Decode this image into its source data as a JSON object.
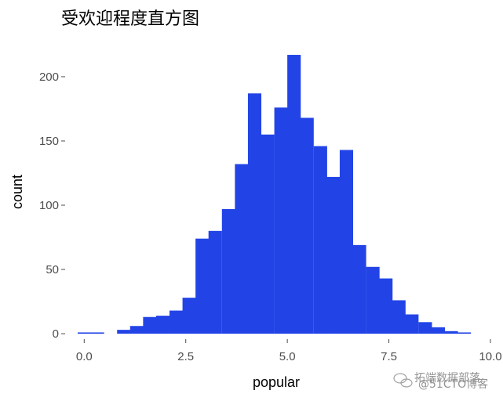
{
  "chart_data": {
    "type": "bar",
    "title": "受欢迎程度直方图",
    "xlabel": "popular",
    "ylabel": "count",
    "xlim": [
      -0.45,
      10.0
    ],
    "ylim": [
      -3,
      228
    ],
    "grid": false,
    "legend": "none",
    "bar_color": "#2244E6",
    "xticks": [
      0.0,
      2.5,
      5.0,
      7.5,
      10.0
    ],
    "xtick_labels": [
      "0.0",
      "2.5",
      "5.0",
      "7.5",
      "10.0"
    ],
    "yticks": [
      0,
      50,
      100,
      150,
      200
    ],
    "ytick_labels": [
      "0",
      "50",
      "100",
      "150",
      "200"
    ],
    "bin_width": 0.3226,
    "bin_starts": [
      -0.16,
      0.16,
      0.48,
      0.81,
      1.13,
      1.45,
      1.77,
      2.1,
      2.42,
      2.74,
      3.06,
      3.39,
      3.71,
      4.03,
      4.35,
      4.68,
      5.0,
      5.32,
      5.65,
      5.97,
      6.29,
      6.61,
      6.94,
      7.26,
      7.58,
      7.9,
      8.23,
      8.55,
      8.87,
      9.19,
      9.52
    ],
    "counts": [
      1,
      1,
      0,
      3,
      6,
      13,
      14,
      18,
      28,
      74,
      80,
      97,
      132,
      187,
      155,
      176,
      217,
      168,
      146,
      122,
      143,
      69,
      52,
      43,
      26,
      15,
      9,
      5,
      2,
      1,
      0
    ]
  },
  "watermark": {
    "text": "拓端数据部落",
    "subtext": "@51CTO博客"
  }
}
